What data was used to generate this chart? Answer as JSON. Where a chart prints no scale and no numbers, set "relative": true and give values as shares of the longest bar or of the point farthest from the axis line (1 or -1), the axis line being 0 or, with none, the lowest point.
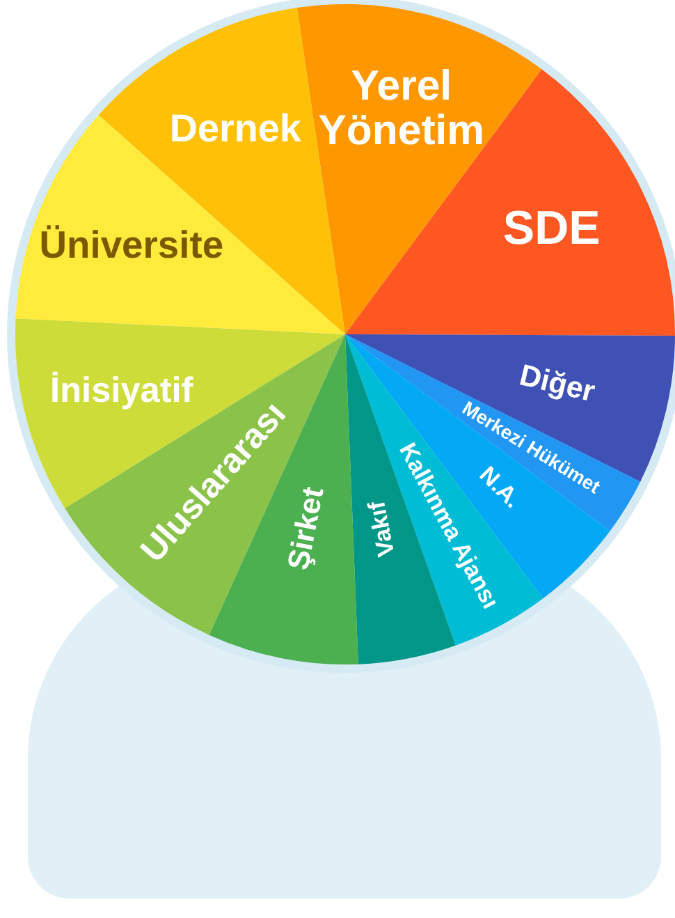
{
  "chart_data": {
    "type": "pie",
    "relative": true,
    "categories": [
      "Yerel Yönetim",
      "SDE",
      "Diğer",
      "Merkezi Hükümet",
      "N.A.",
      "Kalkınma Ajansı",
      "Vakıf",
      "Şirket",
      "Uluslararası",
      "İnisiyatif",
      "Üniversite",
      "Dernek"
    ],
    "values": [
      12.5,
      14.9,
      7.3,
      2.8,
      4.6,
      4.8,
      4.8,
      7.4,
      9.4,
      9.6,
      10.8,
      11.1
    ],
    "colors": [
      "#ff9800",
      "#ff5722",
      "#3f51b5",
      "#2196f3",
      "#03a9f4",
      "#00bcd4",
      "#009688",
      "#4caf50",
      "#8bc34a",
      "#cddc39",
      "#ffeb3b",
      "#ffc107"
    ],
    "legend": false
  }
}
